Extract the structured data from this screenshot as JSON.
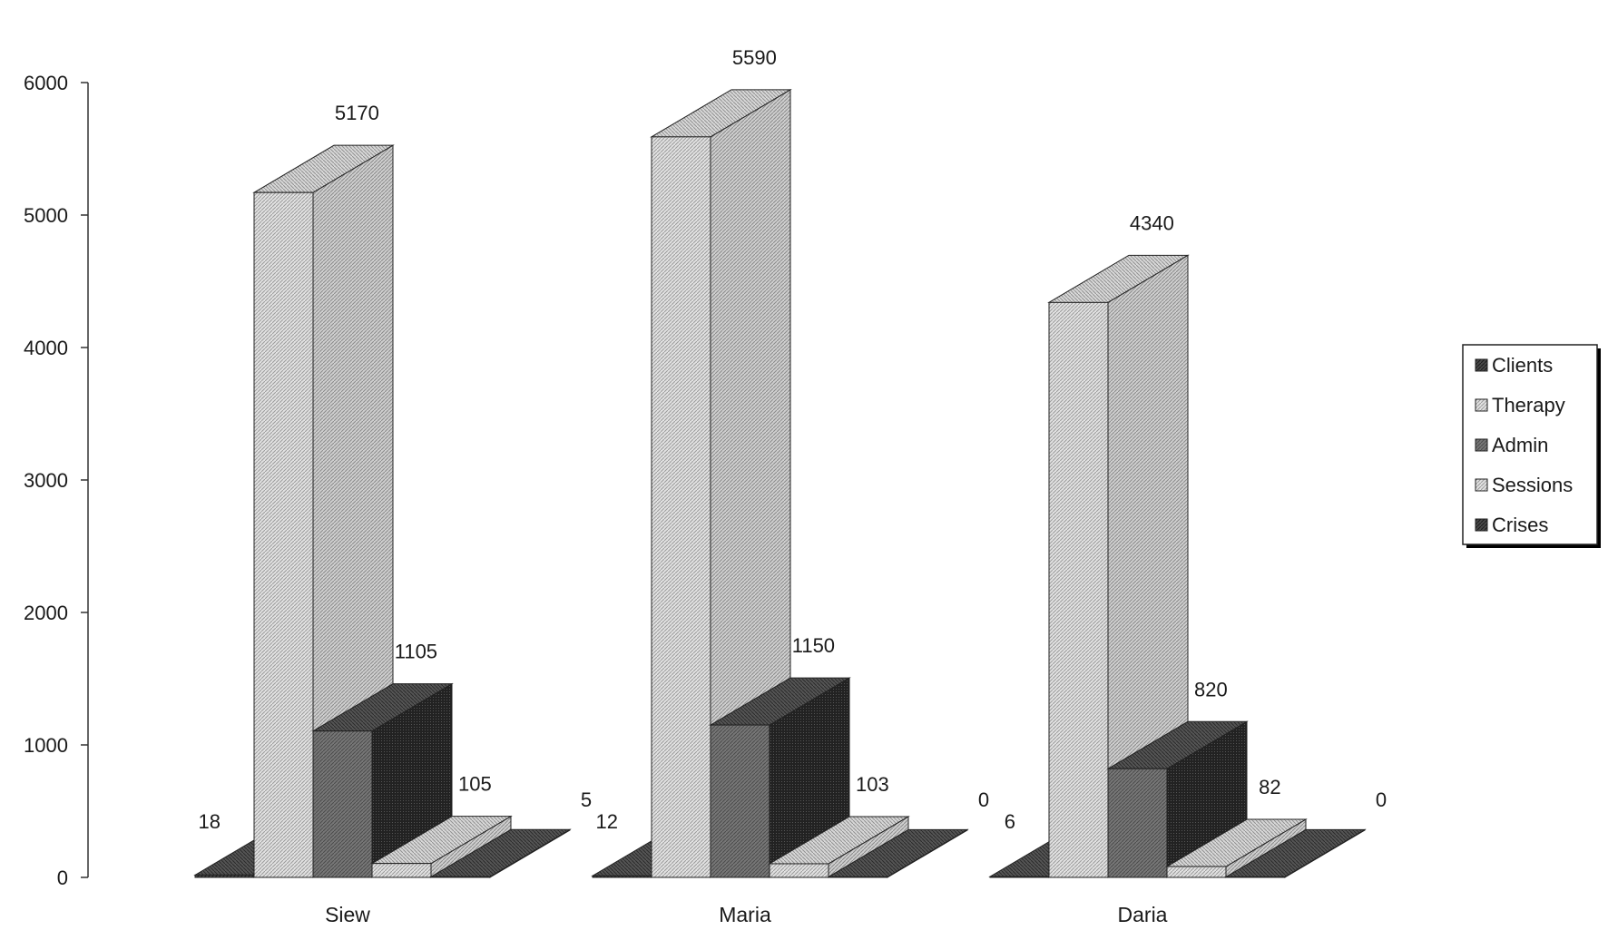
{
  "chart_data": {
    "type": "bar",
    "style": "3d-column",
    "categories": [
      "Siew",
      "Maria",
      "Daria"
    ],
    "series": [
      {
        "name": "Clients",
        "values": [
          18,
          12,
          6
        ],
        "color": "#555555"
      },
      {
        "name": "Therapy",
        "values": [
          5170,
          5590,
          4340
        ],
        "color": "#d0d0d0"
      },
      {
        "name": "Admin",
        "values": [
          1105,
          1150,
          820
        ],
        "color": "#333333"
      },
      {
        "name": "Sessions",
        "values": [
          105,
          103,
          82
        ],
        "color": "#c4c4c4"
      },
      {
        "name": "Crises",
        "values": [
          5,
          0,
          0
        ],
        "color": "#666666"
      }
    ],
    "data_labels": [
      "18",
      "5170",
      "1105",
      "105",
      "5",
      "12",
      "5590",
      "1150",
      "103",
      "0",
      "6",
      "4340",
      "820",
      "82",
      "0"
    ],
    "y_ticks": [
      "0",
      "1000",
      "2000",
      "3000",
      "4000",
      "5000",
      "6000"
    ],
    "ylim": [
      0,
      6000
    ],
    "grid": false,
    "legend_position": "right"
  }
}
